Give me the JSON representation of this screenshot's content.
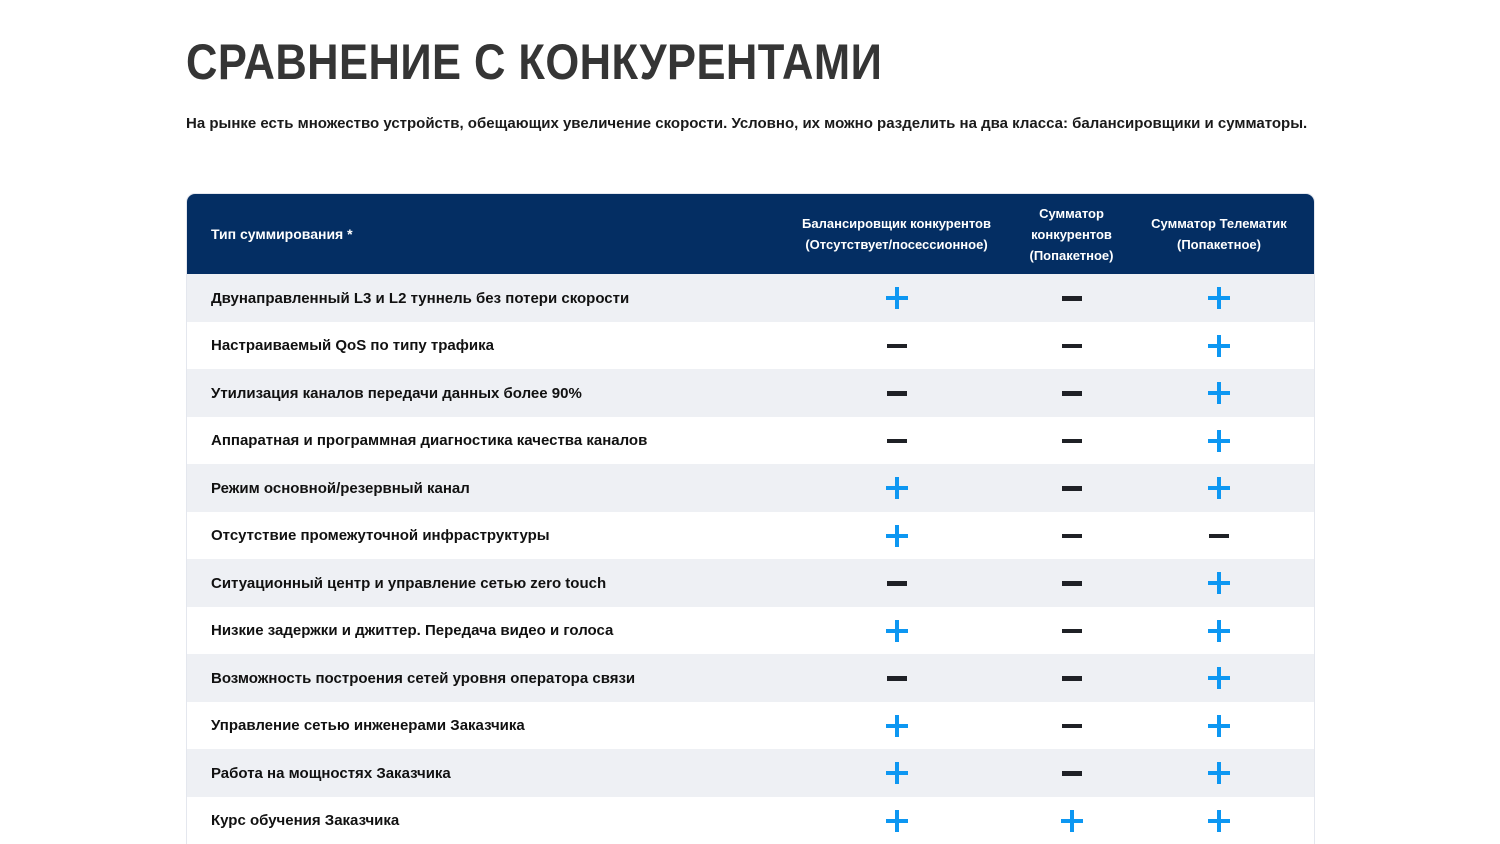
{
  "page": {
    "title": "СРАВНЕНИЕ С КОНКУРЕНТАМИ",
    "subtitle": "На рынке есть множество устройств, обещающих увеличение скорости. Условно, их можно разделить на два класса: балансировщики и сумматоры."
  },
  "table": {
    "label_column_header": "Тип суммирования *",
    "columns": [
      {
        "title": "Балансировщик конкурентов",
        "subtitle": "(Отсутствует/посессионное)"
      },
      {
        "title": "Сумматор конкурентов",
        "subtitle": "(Попакетное)"
      },
      {
        "title": "Сумматор Телематик",
        "subtitle": "(Попакетное)"
      }
    ],
    "rows": [
      {
        "label": "Двунаправленный L3 и L2 туннель без потери скорости",
        "values": [
          "plus",
          "minus",
          "plus"
        ]
      },
      {
        "label": "Настраиваемый QoS по типу трафика",
        "values": [
          "minus",
          "minus",
          "plus"
        ]
      },
      {
        "label": "Утилизация каналов передачи данных более 90%",
        "values": [
          "minus",
          "minus",
          "plus"
        ]
      },
      {
        "label": "Аппаратная и программная диагностика качества каналов",
        "values": [
          "minus",
          "minus",
          "plus"
        ]
      },
      {
        "label": "Режим основной/резервный канал",
        "values": [
          "plus",
          "minus",
          "plus"
        ]
      },
      {
        "label": "Отсутствие промежуточной инфраструктуры",
        "values": [
          "plus",
          "minus",
          "minus"
        ]
      },
      {
        "label": "Ситуационный центр и управление сетью zero touch",
        "values": [
          "minus",
          "minus",
          "plus"
        ]
      },
      {
        "label": "Низкие задержки и джиттер. Передача видео и голоса",
        "values": [
          "plus",
          "minus",
          "plus"
        ]
      },
      {
        "label": "Возможность построения сетей уровня оператора связи",
        "values": [
          "minus",
          "minus",
          "plus"
        ]
      },
      {
        "label": "Управление сетью инженерами Заказчика",
        "values": [
          "plus",
          "minus",
          "plus"
        ]
      },
      {
        "label": "Работа на мощностях Заказчика",
        "values": [
          "plus",
          "minus",
          "plus"
        ]
      },
      {
        "label": "Курс обучения Заказчика",
        "values": [
          "plus",
          "plus",
          "plus"
        ]
      }
    ]
  },
  "colors": {
    "header_bg": "#042e63",
    "row_alt_bg": "#eef0f4",
    "plus": "#0d97f2",
    "minus": "#1f2126"
  }
}
